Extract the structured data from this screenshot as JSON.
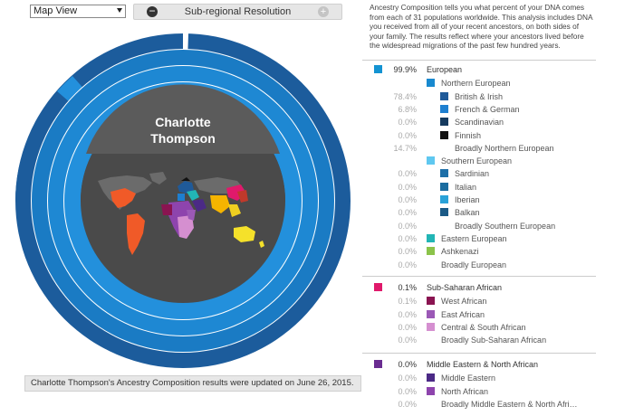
{
  "toolbar": {
    "view_select_value": "Map View",
    "resolution_label": "Sub-regional Resolution",
    "minus_symbol": "−",
    "plus_symbol": "+"
  },
  "person": {
    "name_line1": "Charlotte",
    "name_line2": "Thompson"
  },
  "footnote": "Charlotte Thompson's Ancestry Composition results were updated on June 26, 2015.",
  "intro": "Ancestry Composition tells you what percent of your DNA comes from each of 31 populations worldwide. This analysis includes DNA you received from all of your recent ancestors, on both sides of your family. The results reflect where your ancestors lived before the widespread migrations of the past few hundred years.",
  "colors": {
    "ring_dark": "#1c5c9c",
    "ring_mid": "#1a7bc4",
    "ring_light": "#2390dc",
    "inner_dark": "#4a4a4a",
    "inner_top": "#5a5a5a",
    "map_grey": "#6b6b6b"
  },
  "groups": [
    {
      "pct": "99.9%",
      "label": "European",
      "color": "#1393d2",
      "items": [
        {
          "pct": "",
          "label": "Northern European",
          "color": "#1889cf",
          "level": 1
        },
        {
          "pct": "78.4%",
          "label": "British & Irish",
          "color": "#1f5a99",
          "level": 2
        },
        {
          "pct": "6.8%",
          "label": "French & German",
          "color": "#1e7fd0",
          "level": 2
        },
        {
          "pct": "0.0%",
          "label": "Scandinavian",
          "color": "#153a5e",
          "level": 2
        },
        {
          "pct": "0.0%",
          "label": "Finnish",
          "color": "#111111",
          "level": 2
        },
        {
          "pct": "14.7%",
          "label": "Broadly Northern European",
          "color": "",
          "level": 2
        },
        {
          "pct": "",
          "label": "Southern European",
          "color": "#5fc8f0",
          "level": 1
        },
        {
          "pct": "0.0%",
          "label": "Sardinian",
          "color": "#1d6fa8",
          "level": 2
        },
        {
          "pct": "0.0%",
          "label": "Italian",
          "color": "#1a6c9f",
          "level": 2
        },
        {
          "pct": "0.0%",
          "label": "Iberian",
          "color": "#2aa2d8",
          "level": 2
        },
        {
          "pct": "0.0%",
          "label": "Balkan",
          "color": "#1b5a86",
          "level": 2
        },
        {
          "pct": "0.0%",
          "label": "Broadly Southern European",
          "color": "",
          "level": 2
        },
        {
          "pct": "0.0%",
          "label": "Eastern European",
          "color": "#22b5b5",
          "level": 1
        },
        {
          "pct": "0.0%",
          "label": "Ashkenazi",
          "color": "#8bc34a",
          "level": 1
        },
        {
          "pct": "0.0%",
          "label": "Broadly European",
          "color": "",
          "level": 1
        }
      ]
    },
    {
      "pct": "0.1%",
      "label": "Sub-Saharan African",
      "color": "#e0196b",
      "items": [
        {
          "pct": "0.1%",
          "label": "West African",
          "color": "#8a1451",
          "level": 1
        },
        {
          "pct": "0.0%",
          "label": "East African",
          "color": "#9b59b6",
          "level": 1
        },
        {
          "pct": "0.0%",
          "label": "Central & South African",
          "color": "#d58fd0",
          "level": 1
        },
        {
          "pct": "0.0%",
          "label": "Broadly Sub-Saharan African",
          "color": "",
          "level": 1
        }
      ]
    },
    {
      "pct": "0.0%",
      "label": "Middle Eastern & North African",
      "color": "#6a2c91",
      "items": [
        {
          "pct": "0.0%",
          "label": "Middle Eastern",
          "color": "#4b2a86",
          "level": 1
        },
        {
          "pct": "0.0%",
          "label": "North African",
          "color": "#8e44ad",
          "level": 1
        },
        {
          "pct": "0.0%",
          "label": "Broadly Middle Eastern & North Afri…",
          "color": "",
          "level": 1
        }
      ]
    }
  ]
}
